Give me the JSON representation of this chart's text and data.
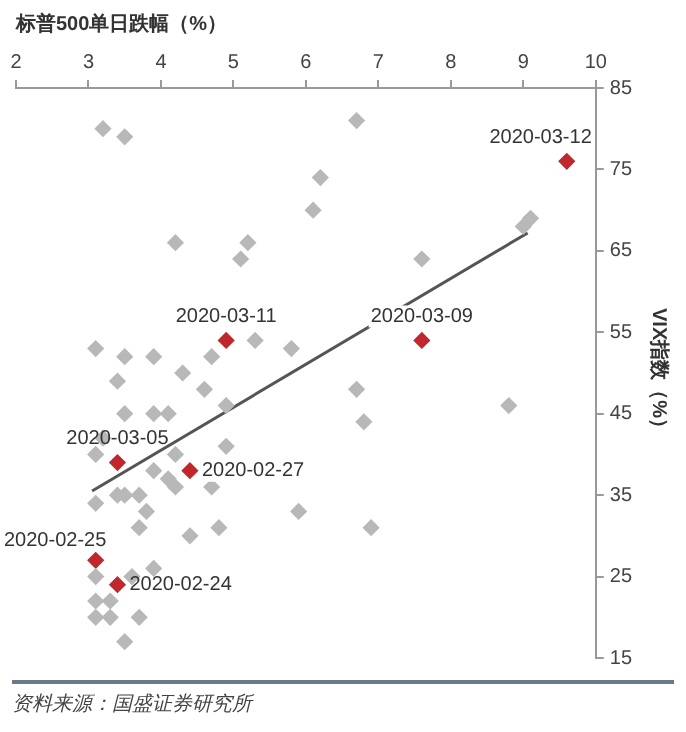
{
  "chart_data": {
    "type": "scatter",
    "title": "标普500单日跌幅（%）",
    "ylabel": "VIX指数（%）",
    "xlim": [
      2,
      10
    ],
    "xticks": [
      2,
      3,
      4,
      5,
      6,
      7,
      8,
      9,
      10
    ],
    "ylim": [
      15,
      85
    ],
    "yticks": [
      15,
      25,
      35,
      45,
      55,
      65,
      75,
      85
    ],
    "grid": false,
    "legend": false,
    "marker": "diamond",
    "series": [
      {
        "color": "#b8b8b8",
        "x": [
          3.2,
          3.5,
          6.7,
          6.2,
          6.1,
          4.2,
          5.2,
          9.0,
          9.1,
          5.1,
          7.6,
          3.1,
          3.5,
          3.9,
          4.7,
          5.3,
          5.8,
          3.4,
          4.3,
          4.6,
          6.7,
          4.9,
          8.8,
          3.5,
          3.9,
          4.1,
          6.8,
          3.2,
          3.1,
          4.9,
          4.2,
          3.9,
          4.1,
          3.5,
          3.7,
          4.7,
          3.1,
          3.4,
          3.8,
          3.7,
          4.2,
          4.8,
          4.4,
          5.9,
          6.9,
          3.1,
          3.6,
          3.9,
          3.1,
          3.3,
          3.1,
          3.3,
          3.7,
          3.5
        ],
        "values": [
          80,
          79,
          81,
          74,
          70,
          66,
          66,
          68,
          69,
          64,
          64,
          53,
          52,
          52,
          52,
          54,
          53,
          49,
          50,
          48,
          48,
          46,
          46,
          45,
          45,
          45,
          44,
          42,
          40,
          41,
          40,
          38,
          37,
          35,
          35,
          36,
          34,
          35,
          33,
          31,
          36,
          31,
          30,
          33,
          31,
          25,
          25,
          26,
          22,
          22,
          20,
          20,
          20,
          17
        ]
      },
      {
        "color": "#c0282d",
        "x": [
          9.6,
          7.6,
          4.9,
          3.4,
          4.4,
          3.1,
          3.4
        ],
        "values": [
          76,
          54,
          54,
          39,
          38,
          27,
          24
        ]
      },
      {
        "type": "line",
        "marker": "none",
        "color": "#555555",
        "x": [
          3.05,
          9.06
        ],
        "values": [
          35.5,
          67.2
        ]
      }
    ],
    "annotations": [
      {
        "text": "2020-03-12",
        "x": 9.6,
        "y": 76
      },
      {
        "text": "2020-03-09",
        "x": 7.6,
        "y": 54
      },
      {
        "text": "2020-03-11",
        "x": 4.9,
        "y": 54
      },
      {
        "text": "2020-03-05",
        "x": 3.4,
        "y": 39
      },
      {
        "text": "2020-02-27",
        "x": 4.4,
        "y": 38
      },
      {
        "text": "2020-02-25",
        "x": 3.1,
        "y": 27
      },
      {
        "text": "2020-02-24",
        "x": 3.4,
        "y": 24
      },
      "资料来源：国盛证券研究所"
    ]
  }
}
